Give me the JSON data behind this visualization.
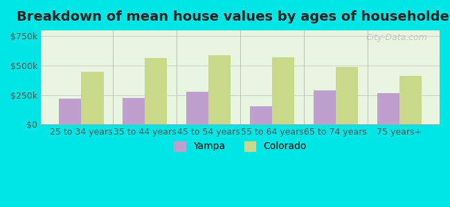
{
  "title": "Breakdown of mean house values by ages of householders",
  "categories": [
    "25 to 34 years",
    "35 to 44 years",
    "45 to 54 years",
    "55 to 64 years",
    "65 to 74 years",
    "75 years+"
  ],
  "yampa_values": [
    220000,
    225000,
    275000,
    155000,
    290000,
    265000
  ],
  "colorado_values": [
    450000,
    565000,
    590000,
    570000,
    490000,
    410000
  ],
  "yampa_color": "#bf9fce",
  "colorado_color": "#c8d98a",
  "background_color": "#e8f5e0",
  "outer_background": "#00e5e5",
  "yticks": [
    0,
    250000,
    500000,
    750000
  ],
  "ytick_labels": [
    "$0",
    "$250k",
    "$500k",
    "$750k"
  ],
  "ylim": [
    0,
    800000
  ],
  "bar_width": 0.35,
  "title_fontsize": 14,
  "tick_fontsize": 9,
  "legend_fontsize": 10,
  "watermark": "City-Data.com"
}
